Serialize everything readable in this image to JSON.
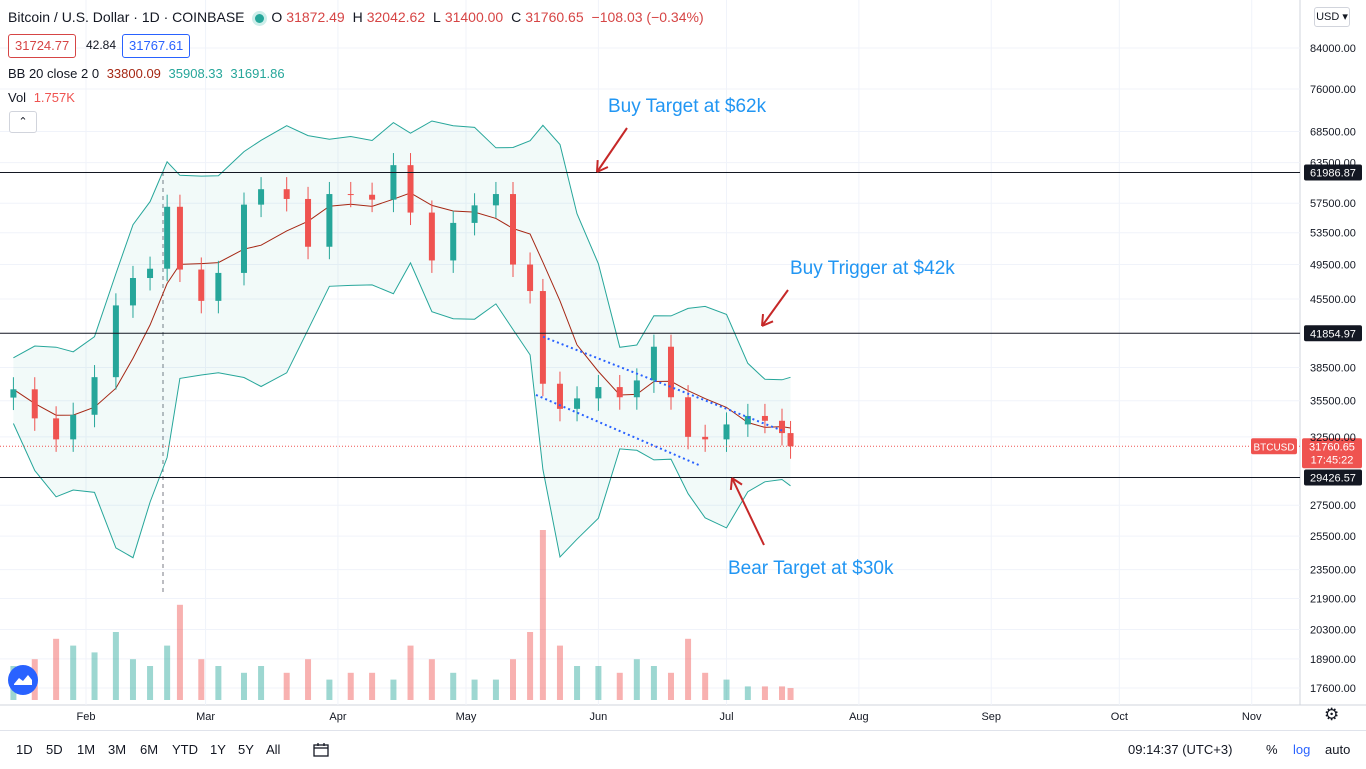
{
  "header": {
    "symbol_title": "Bitcoin / U.S. Dollar · 1D · COINBASE",
    "ohlc": {
      "o_label": "O",
      "o": "31872.49",
      "h_label": "H",
      "h": "32042.62",
      "l_label": "L",
      "l": "31400.00",
      "c_label": "C",
      "c": "31760.65",
      "change": "−108.03 (−0.34%)"
    },
    "sell_price": "31724.77",
    "spread": "42.84",
    "buy_price": "31767.61",
    "bb": {
      "label": "BB 20 close 2 0",
      "basis": "33800.09",
      "upper": "35908.33",
      "lower": "31691.86"
    },
    "vol": {
      "label": "Vol",
      "value": "1.757K"
    }
  },
  "currency": "USD",
  "price_scale": {
    "ticks": [
      "84000.00",
      "76000.00",
      "68500.00",
      "63500.00",
      "57500.00",
      "53500.00",
      "49500.00",
      "45500.00",
      "38500.00",
      "35500.00",
      "32500.00",
      "27500.00",
      "25500.00",
      "23500.00",
      "21900.00",
      "20300.00",
      "18900.00",
      "17600.00"
    ]
  },
  "levels": [
    {
      "label": "61986.87",
      "price": 61986.87
    },
    {
      "label": "41854.97",
      "price": 41854.97
    },
    {
      "label": "29426.57",
      "price": 29426.57
    }
  ],
  "current": {
    "symbol": "BTCUSD",
    "price_label": "31760.65",
    "countdown": "17:45:22",
    "price": 31760.65
  },
  "time_axis": [
    "Feb",
    "Mar",
    "Apr",
    "May",
    "Jun",
    "Jul",
    "Aug",
    "Sep",
    "Oct",
    "Nov"
  ],
  "annotations": {
    "buy_target": "Buy Target at $62k",
    "buy_trigger": "Buy Trigger at $42k",
    "bear_target": "Bear Target at $30k"
  },
  "toolbar": {
    "timeframes": [
      "1D",
      "5D",
      "1M",
      "3M",
      "6M",
      "YTD",
      "1Y",
      "5Y",
      "All"
    ],
    "clock": "09:14:37 (UTC+3)",
    "percent": "%",
    "log": "log",
    "auto": "auto"
  },
  "colors": {
    "up": "#26a69a",
    "down": "#ef5350",
    "band": "#26a69a",
    "basis": "#a52714",
    "accent": "#2962ff",
    "annotation": "#2196f3"
  },
  "chart_data": {
    "type": "candlestick",
    "title": "Bitcoin / U.S. Dollar · 1D · COINBASE",
    "ylim": [
      16000,
      95000
    ],
    "y_scale": "log",
    "grid": true,
    "series": [
      {
        "name": "BTCUSD",
        "kind": "ohlc",
        "x": [
          "2021-01-15",
          "2021-01-20",
          "2021-01-25",
          "2021-01-29",
          "2021-02-03",
          "2021-02-08",
          "2021-02-12",
          "2021-02-16",
          "2021-02-20",
          "2021-02-23",
          "2021-02-28",
          "2021-03-04",
          "2021-03-10",
          "2021-03-14",
          "2021-03-20",
          "2021-03-25",
          "2021-03-30",
          "2021-04-04",
          "2021-04-09",
          "2021-04-14",
          "2021-04-18",
          "2021-04-23",
          "2021-04-28",
          "2021-05-03",
          "2021-05-08",
          "2021-05-12",
          "2021-05-16",
          "2021-05-19",
          "2021-05-23",
          "2021-05-27",
          "2021-06-01",
          "2021-06-06",
          "2021-06-10",
          "2021-06-14",
          "2021-06-18",
          "2021-06-22",
          "2021-06-26",
          "2021-07-01",
          "2021-07-06",
          "2021-07-10",
          "2021-07-14",
          "2021-07-16"
        ],
        "close": [
          36500,
          34000,
          32300,
          34300,
          37600,
          44800,
          47900,
          49000,
          57000,
          48900,
          45300,
          48500,
          57300,
          59500,
          58100,
          51700,
          58800,
          58700,
          58000,
          63100,
          56200,
          50000,
          54800,
          57200,
          58800,
          49500,
          46400,
          37000,
          34800,
          35700,
          36700,
          35800,
          37300,
          40500,
          35800,
          32500,
          32300,
          33500,
          34200,
          33800,
          32800,
          31760
        ]
      },
      {
        "name": "Volume",
        "kind": "volume",
        "values": [
          5,
          6,
          9,
          8,
          7,
          10,
          6,
          5,
          8,
          14,
          6,
          5,
          4,
          5,
          4,
          6,
          3,
          4,
          4,
          3,
          8,
          6,
          4,
          3,
          3,
          6,
          10,
          25,
          8,
          5,
          5,
          4,
          6,
          5,
          4,
          9,
          4,
          3,
          2,
          2,
          2,
          1.757
        ]
      }
    ]
  }
}
